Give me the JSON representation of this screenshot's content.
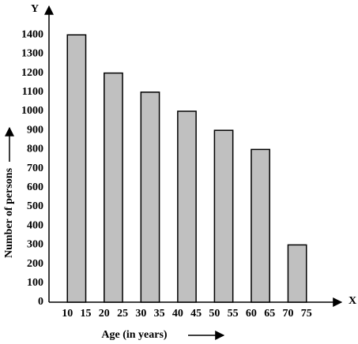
{
  "chart_data": {
    "type": "bar",
    "x_axis_letter": "X",
    "y_axis_letter": "Y",
    "xlabel": "Age (in years)",
    "ylabel": "Number of persons",
    "x_start": [
      10,
      20,
      30,
      40,
      50,
      60,
      70
    ],
    "x_end": [
      15,
      25,
      35,
      45,
      55,
      65,
      75
    ],
    "values": [
      1400,
      1200,
      1100,
      1000,
      900,
      800,
      300
    ],
    "color": "#c0c0c0",
    "xlim": [
      5,
      80
    ],
    "xticks": [
      10,
      15,
      20,
      25,
      30,
      35,
      40,
      45,
      50,
      55,
      60,
      65,
      70,
      75
    ],
    "ylim": [
      0,
      1500
    ],
    "yticks": [
      0,
      100,
      200,
      300,
      400,
      500,
      600,
      700,
      800,
      900,
      1000,
      1100,
      1200,
      1300,
      1400
    ]
  }
}
